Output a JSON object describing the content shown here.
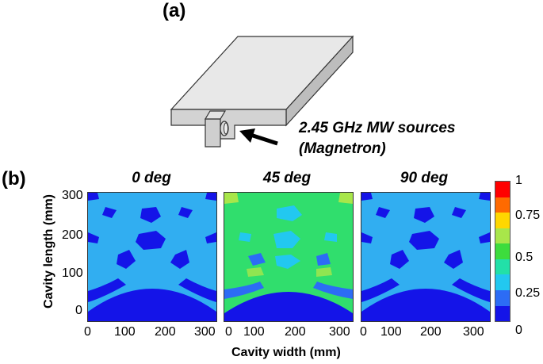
{
  "panel_a": {
    "tag": "(a)",
    "annotation_line1": "2.45 GHz MW sources",
    "annotation_line2": "(Magnetron)"
  },
  "panel_b": {
    "tag": "(b)",
    "titles": [
      "0 deg",
      "45 deg",
      "90 deg"
    ],
    "y_label": "Cavity length (mm)",
    "x_label": "Cavity width (mm)",
    "y_ticks": [
      "300",
      "200",
      "100",
      "0"
    ],
    "x_ticks": [
      "0",
      "100",
      "200",
      "300"
    ],
    "colorbar_ticks": [
      "1",
      "0.75",
      "0.5",
      "0.25",
      "0"
    ],
    "colorbar_colors": [
      "#ff0000",
      "#ff6a00",
      "#ffd700",
      "#a8e64a",
      "#3ddc3d",
      "#22e0a8",
      "#22c8f0",
      "#2c6cf5",
      "#1414e8"
    ]
  }
}
